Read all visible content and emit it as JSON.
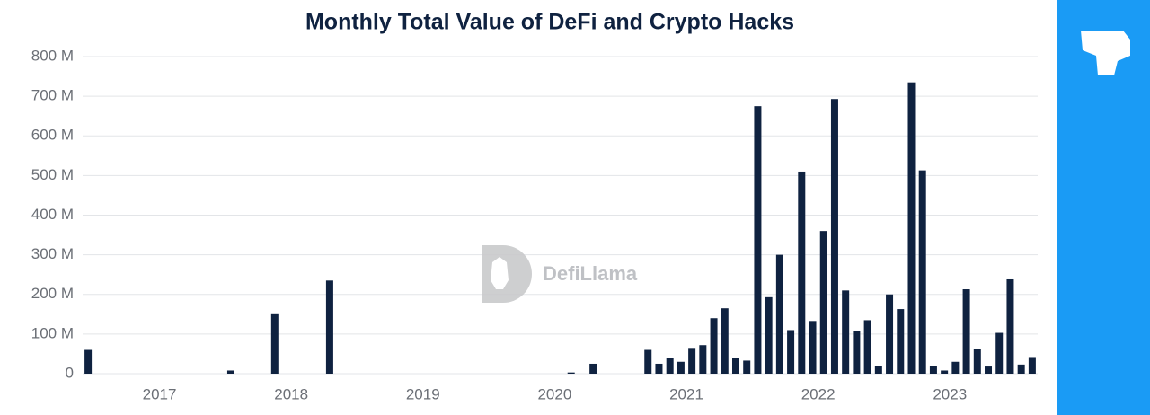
{
  "chart_data": {
    "type": "bar",
    "title": "Monthly Total Value of DeFi and Crypto Hacks",
    "watermark": "DefiLlama",
    "categories": [
      null,
      null,
      null,
      null,
      null,
      null,
      null,
      "2017",
      null,
      null,
      null,
      null,
      null,
      null,
      null,
      null,
      null,
      null,
      null,
      "2018",
      null,
      null,
      null,
      null,
      null,
      null,
      null,
      null,
      null,
      null,
      null,
      "2019",
      null,
      null,
      null,
      null,
      null,
      null,
      null,
      null,
      null,
      null,
      null,
      "2020",
      null,
      null,
      null,
      null,
      null,
      null,
      null,
      null,
      null,
      null,
      null,
      "2021",
      null,
      null,
      null,
      null,
      null,
      null,
      null,
      null,
      null,
      null,
      null,
      "2022",
      null,
      null,
      null,
      null,
      null,
      null,
      null,
      null,
      null,
      null,
      null,
      "2023",
      null,
      null,
      null,
      null,
      null,
      null,
      null
    ],
    "values": [
      60,
      0,
      0,
      0,
      0,
      0,
      0,
      0,
      0,
      0,
      0,
      0,
      0,
      8,
      0,
      0,
      0,
      150,
      0,
      0,
      0,
      0,
      235,
      0,
      0,
      0,
      0,
      0,
      0,
      0,
      0,
      0,
      0,
      0,
      0,
      0,
      0,
      0,
      0,
      0,
      0,
      0,
      0,
      0,
      3,
      0,
      25,
      0,
      0,
      0,
      0,
      60,
      25,
      40,
      30,
      65,
      72,
      140,
      165,
      40,
      33,
      675,
      193,
      300,
      110,
      510,
      133,
      360,
      693,
      210,
      108,
      135,
      20,
      200,
      163,
      735,
      513,
      20,
      8,
      30,
      213,
      62,
      18,
      103,
      238,
      23,
      42
    ],
    "color": "#0f2240",
    "ylim": [
      0,
      800
    ],
    "yticks": [
      0,
      {
        "value": 100,
        "label": "100 M"
      },
      {
        "value": 200,
        "label": "200 M"
      },
      {
        "value": 300,
        "label": "300 M"
      },
      {
        "value": 400,
        "label": "400 M"
      },
      {
        "value": 500,
        "label": "500 M"
      },
      {
        "value": 600,
        "label": "600 M"
      },
      {
        "value": 700,
        "label": "700 M"
      },
      {
        "value": 800,
        "label": "800 M"
      }
    ],
    "grid": true
  }
}
